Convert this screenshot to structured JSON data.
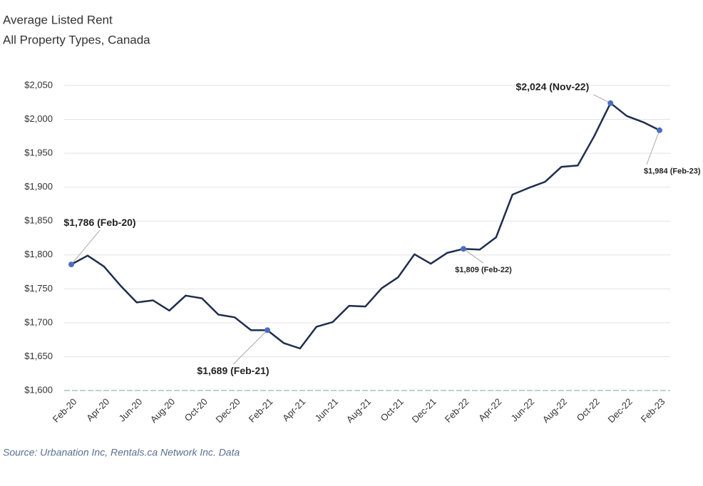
{
  "chart_data": {
    "type": "line",
    "title": "Average Listed Rent",
    "subtitle": "All Property Types, Canada",
    "source": "Source: Urbanation Inc, Rentals.ca Network Inc. Data",
    "categories": [
      "Feb-20",
      null,
      "Apr-20",
      null,
      "Jun-20",
      null,
      "Aug-20",
      null,
      "Oct-20",
      null,
      "Dec-20",
      null,
      "Feb-21",
      null,
      "Apr-21",
      null,
      "Jun-21",
      null,
      "Aug-21",
      null,
      "Oct-21",
      null,
      "Dec-21",
      null,
      "Feb-22",
      null,
      "Apr-22",
      null,
      "Jun-22",
      null,
      "Aug-22",
      null,
      "Oct-22",
      null,
      "Dec-22",
      null,
      "Feb-23"
    ],
    "series": [
      {
        "name": "Average Listed Rent",
        "color": "#1f2d4d",
        "values": [
          1786,
          1799,
          1783,
          1755,
          1730,
          1733,
          1718,
          1740,
          1736,
          1712,
          1708,
          1689,
          1689,
          1670,
          1662,
          1694,
          1701,
          1725,
          1724,
          1751,
          1767,
          1801,
          1787,
          1803,
          1809,
          1808,
          1826,
          1889,
          1899,
          1908,
          1930,
          1932,
          1975,
          2024,
          2005,
          1996,
          1984
        ],
        "value_labels": [
          "$1,786 (Feb-20)",
          null,
          null,
          null,
          null,
          null,
          null,
          null,
          null,
          null,
          null,
          null,
          "$1,689 (Feb-21)",
          null,
          null,
          null,
          null,
          null,
          null,
          null,
          null,
          null,
          null,
          null,
          "$1,809 (Feb-22)",
          null,
          null,
          null,
          null,
          null,
          null,
          null,
          null,
          "$2,024 (Nov-22)",
          null,
          null,
          "$1,984 (Feb-23)"
        ]
      }
    ],
    "marker_color": "#4a6fc1",
    "ylim": [
      1600,
      2050
    ],
    "yticks": [
      {
        "value": 1600,
        "label": "$1,600"
      },
      {
        "value": 1650,
        "label": "$1,650"
      },
      {
        "value": 1700,
        "label": "$1,700"
      },
      {
        "value": 1750,
        "label": "$1,750"
      },
      {
        "value": 1800,
        "label": "$1,800"
      },
      {
        "value": 1850,
        "label": "$1,850"
      },
      {
        "value": 1900,
        "label": "$1,900"
      },
      {
        "value": 1950,
        "label": "$1,950"
      },
      {
        "value": 2000,
        "label": "$2,000"
      },
      {
        "value": 2050,
        "label": "$2,050"
      }
    ],
    "grid": true
  }
}
